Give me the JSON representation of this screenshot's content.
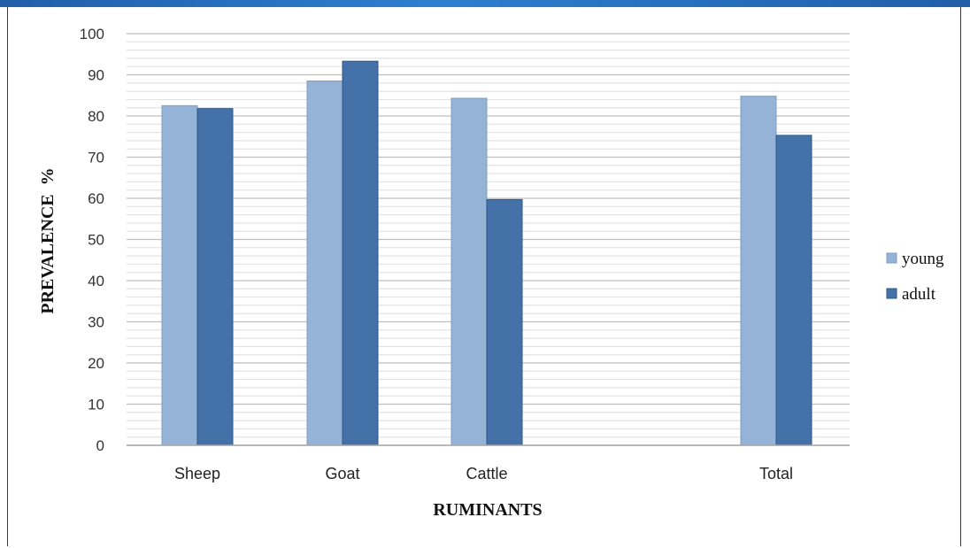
{
  "chart_data": {
    "type": "bar",
    "categories": [
      "Sheep",
      "Goat",
      "Cattle",
      "Total"
    ],
    "series": [
      {
        "name": "young",
        "values": [
          82.5,
          88.5,
          84.3,
          84.8
        ],
        "color": "#95b3d7"
      },
      {
        "name": "adult",
        "values": [
          81.8,
          93.3,
          59.7,
          75.3
        ],
        "color": "#4472a8"
      }
    ],
    "xlabel": "RUMINANTS",
    "ylabel": "PREVALENCE  %",
    "ylim": [
      0,
      100
    ],
    "yticks": [
      0,
      10,
      20,
      30,
      40,
      50,
      60,
      70,
      80,
      90,
      100
    ],
    "grid": true,
    "legend_position": "right"
  }
}
